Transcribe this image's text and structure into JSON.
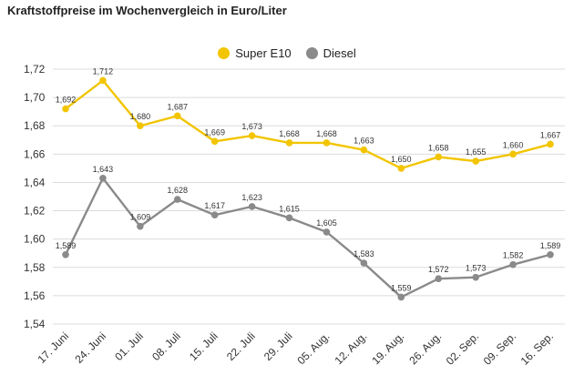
{
  "chart_data": {
    "type": "line",
    "title": "Kraftstoffpreise im Wochenvergleich in Euro/Liter",
    "categories": [
      "17. Juni",
      "24. Juni",
      "01. Juli",
      "08. Juli",
      "15. Juli",
      "22. Juli",
      "29. Juli",
      "05. Aug.",
      "12. Aug.",
      "19. Aug.",
      "26. Aug.",
      "02. Sep.",
      "09. Sep.",
      "16. Sep."
    ],
    "series": [
      {
        "name": "Super E10",
        "color": "#f2c500",
        "values": [
          1.692,
          1.712,
          1.68,
          1.687,
          1.669,
          1.673,
          1.668,
          1.668,
          1.663,
          1.65,
          1.658,
          1.655,
          1.66,
          1.667
        ],
        "labels": [
          "1,692",
          "1,712",
          "1,680",
          "1,687",
          "1,669",
          "1,673",
          "1,668",
          "1,668",
          "1,663",
          "1,650",
          "1,658",
          "1,655",
          "1,660",
          "1,667"
        ]
      },
      {
        "name": "Diesel",
        "color": "#8a8a8a",
        "values": [
          1.589,
          1.643,
          1.609,
          1.628,
          1.617,
          1.623,
          1.615,
          1.605,
          1.583,
          1.559,
          1.572,
          1.573,
          1.582,
          1.589
        ],
        "labels": [
          "1,589",
          "1,643",
          "1,609",
          "1,628",
          "1,617",
          "1,623",
          "1,615",
          "1,605",
          "1,583",
          "1,559",
          "1,572",
          "1,573",
          "1,582",
          "1,589"
        ]
      }
    ],
    "yticks": [
      1.54,
      1.56,
      1.58,
      1.6,
      1.62,
      1.64,
      1.66,
      1.68,
      1.7,
      1.72
    ],
    "ytick_labels": [
      "1,54",
      "1,56",
      "1,58",
      "1,60",
      "1,62",
      "1,64",
      "1,66",
      "1,68",
      "1,70",
      "1,72"
    ],
    "ylim": [
      1.54,
      1.72
    ],
    "grid": true,
    "legend_position": "top-center"
  }
}
